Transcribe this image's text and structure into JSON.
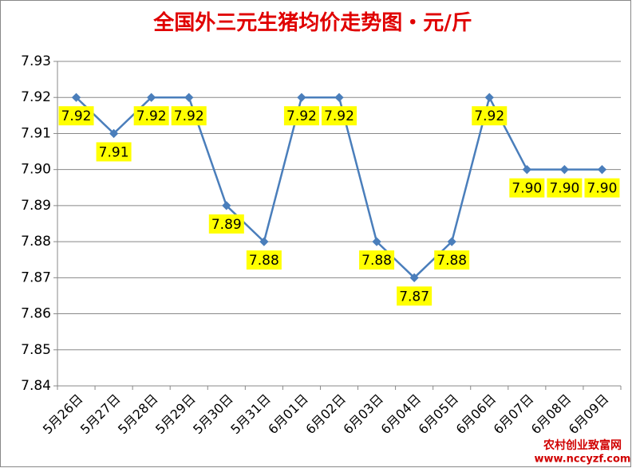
{
  "chart_data": {
    "type": "line",
    "title": "全国外三元生猪均价走势图・元/斤",
    "categories": [
      "5月26日",
      "5月27日",
      "5月28日",
      "5月29日",
      "5月30日",
      "5月31日",
      "6月01日",
      "6月02日",
      "6月03日",
      "6月04日",
      "6月05日",
      "6月06日",
      "6月07日",
      "6月08日",
      "6月09日"
    ],
    "series": [
      {
        "name": null,
        "color": "#4a7ebb",
        "values": [
          7.92,
          7.91,
          7.92,
          7.92,
          7.89,
          7.88,
          7.92,
          7.92,
          7.88,
          7.87,
          7.88,
          7.92,
          7.9,
          7.9,
          7.9
        ],
        "value_labels": [
          "7.92",
          "7.91",
          "7.92",
          "7.92",
          "7.89",
          "7.88",
          "7.92",
          "7.92",
          "7.88",
          "7.87",
          "7.88",
          "7.92",
          "7.90",
          "7.90",
          "7.90"
        ]
      }
    ],
    "ylim": [
      7.84,
      7.93
    ],
    "yticks": [
      7.84,
      7.85,
      7.86,
      7.87,
      7.88,
      7.89,
      {
        "value": 7.9,
        "label": "7.90"
      },
      7.91,
      7.92,
      7.93
    ],
    "grid": true
  },
  "watermark": {
    "title": "农村创业致富网",
    "url": "www.nccyzf.com"
  }
}
